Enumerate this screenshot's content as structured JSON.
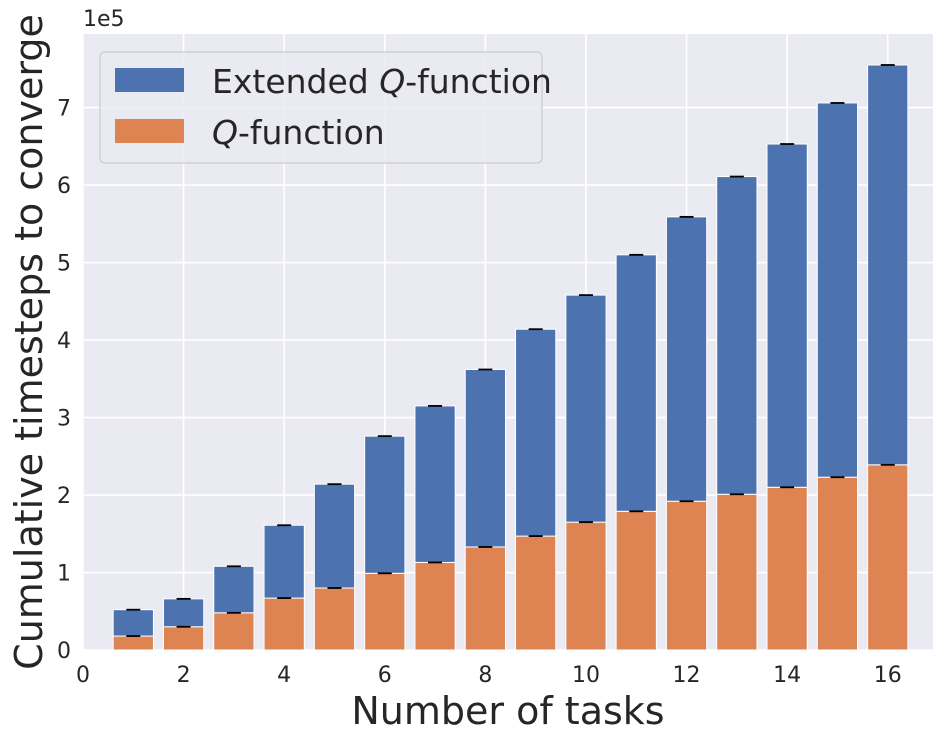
{
  "chart_data": {
    "type": "bar",
    "stacked": true,
    "x": [
      1,
      2,
      3,
      4,
      5,
      6,
      7,
      8,
      9,
      10,
      11,
      12,
      13,
      14,
      15,
      16
    ],
    "series": [
      {
        "name": "Q-function",
        "name_italic": "Q",
        "name_rest": "-function",
        "color": "#dd8452",
        "values": [
          18000,
          30000,
          48000,
          67000,
          80000,
          99000,
          113000,
          133000,
          147000,
          165000,
          179000,
          192000,
          201000,
          210000,
          223000,
          239000
        ]
      },
      {
        "name": "Extended Q-function",
        "name_prefix": "Extended ",
        "name_italic": "Q",
        "name_rest": "-function",
        "color": "#4c72b0",
        "values": [
          34000,
          36000,
          60000,
          94000,
          134000,
          177000,
          202000,
          229000,
          267000,
          293000,
          331000,
          367000,
          410000,
          443000,
          483000,
          516000
        ]
      }
    ],
    "xlabel": "Number of tasks",
    "ylabel": "Cumulative timesteps to converge",
    "multiplier_label": "1e5",
    "xlim": [
      0,
      16.9
    ],
    "ylim": [
      0,
      795000
    ],
    "xticks": [
      0,
      2,
      4,
      6,
      8,
      10,
      12,
      14,
      16
    ],
    "yticks": [
      0,
      1,
      2,
      3,
      4,
      5,
      6,
      7
    ],
    "y_scale": 100000,
    "legend_position": "top-left",
    "grid": true,
    "background": "#eaeaf2",
    "grid_color": "#ffffff"
  }
}
